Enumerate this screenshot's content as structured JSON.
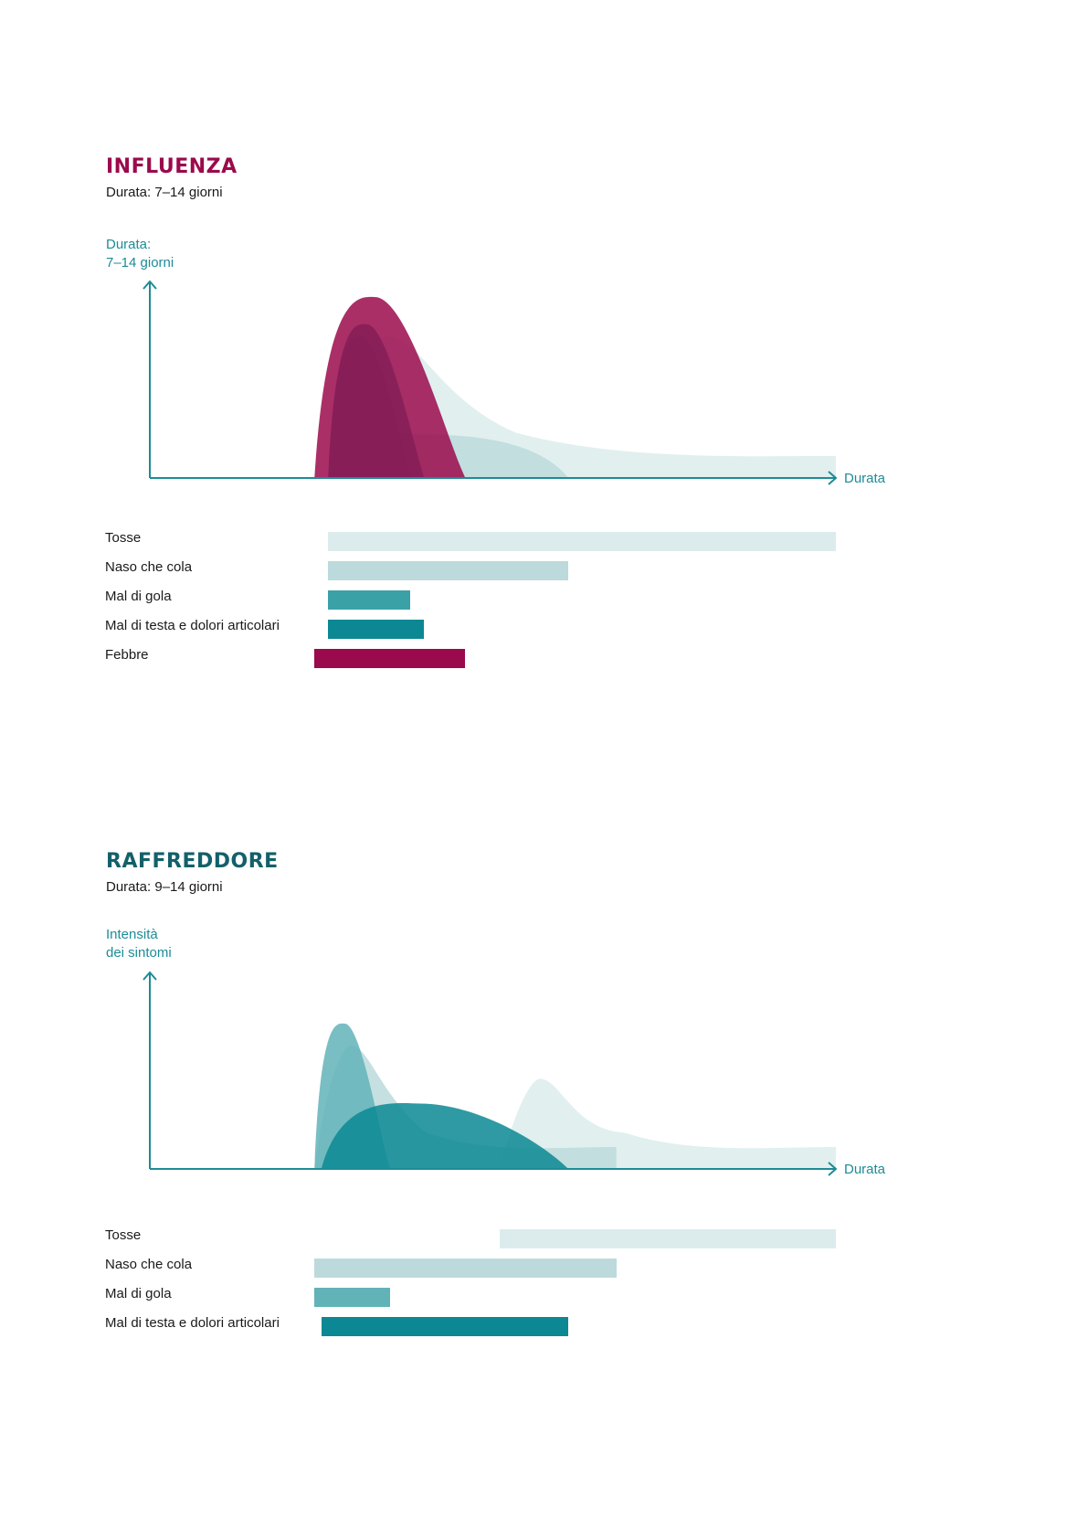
{
  "chart_data": [
    {
      "type": "area",
      "title": "INFLUENZA",
      "subtitle": "Durata: 7–14 giorni",
      "ylabel": "Durata:\n7–14 giorni",
      "xlabel": "Durata",
      "title_color": "#9b0a4c",
      "xlim": [
        0,
        100
      ],
      "series": [
        {
          "name": "Tosse",
          "color": "#dcecec",
          "start": 26,
          "end": 100,
          "peak": 0.78
        },
        {
          "name": "Naso che cola",
          "color": "#bcdadc",
          "start": 26,
          "end": 61,
          "peak": 0.24
        },
        {
          "name": "Mal di gola",
          "color": "#3aa1a7",
          "start": 26,
          "end": 38,
          "peak": 0.78
        },
        {
          "name": "Mal di testa e dolori articolari",
          "color": "#0b8893",
          "start": 26,
          "end": 40,
          "peak": 0.85
        },
        {
          "name": "Febbre",
          "color": "#9b0a4c",
          "start": 24,
          "end": 46,
          "peak": 1.0
        }
      ]
    },
    {
      "type": "area",
      "title": "RAFFREDDORE",
      "subtitle": "Durata: 9–14 giorni",
      "ylabel": "Intensità\ndei sintomi",
      "xlabel": "Durata",
      "title_color": "#13606a",
      "xlim": [
        0,
        100
      ],
      "series": [
        {
          "name": "Tosse",
          "color": "#dcecec",
          "start": 51,
          "end": 100,
          "peak": 0.62
        },
        {
          "name": "Naso che cola",
          "color": "#bcdadc",
          "start": 24,
          "end": 68,
          "peak": 0.85
        },
        {
          "name": "Mal di gola",
          "color": "#61b3b8",
          "start": 24,
          "end": 35,
          "peak": 1.0
        },
        {
          "name": "Mal di testa e dolori articolari",
          "color": "#0b8893",
          "start": 25,
          "end": 61,
          "peak": 0.45
        }
      ]
    }
  ]
}
